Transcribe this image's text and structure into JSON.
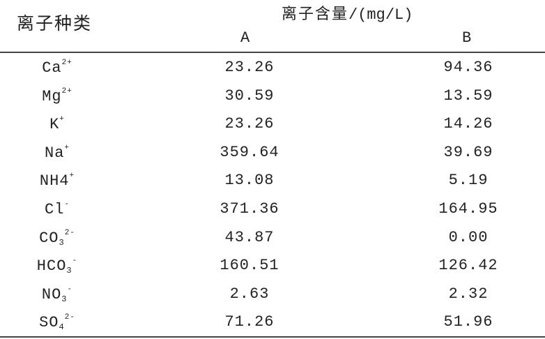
{
  "table": {
    "header": {
      "ion_type": "离子种类",
      "content_group_cjk": "离子含量",
      "content_group_unit": "/(mg/L)",
      "col_a": "A",
      "col_b": "B"
    },
    "rows": [
      {
        "base": "Ca",
        "sub": "",
        "sup": "2+",
        "a": "23.26",
        "b": "94.36"
      },
      {
        "base": "Mg",
        "sub": "",
        "sup": "2+",
        "a": "30.59",
        "b": "13.59"
      },
      {
        "base": "K",
        "sub": "",
        "sup": "+",
        "a": "23.26",
        "b": "14.26"
      },
      {
        "base": "Na",
        "sub": "",
        "sup": "+",
        "a": "359.64",
        "b": "39.69"
      },
      {
        "base": "NH4",
        "sub": "",
        "sup": "+",
        "a": "13.08",
        "b": "5.19"
      },
      {
        "base": "Cl",
        "sub": "",
        "sup": "-",
        "a": "371.36",
        "b": "164.95"
      },
      {
        "base": "CO",
        "sub": "3",
        "sup": "2-",
        "a": "43.87",
        "b": "0.00"
      },
      {
        "base": "HCO",
        "sub": "3",
        "sup": "-",
        "a": "160.51",
        "b": "126.42"
      },
      {
        "base": "NO",
        "sub": "3",
        "sup": "-",
        "a": "2.63",
        "b": "2.32"
      },
      {
        "base": "SO",
        "sub": "4",
        "sup": "2-",
        "a": "71.26",
        "b": "51.96"
      }
    ]
  }
}
